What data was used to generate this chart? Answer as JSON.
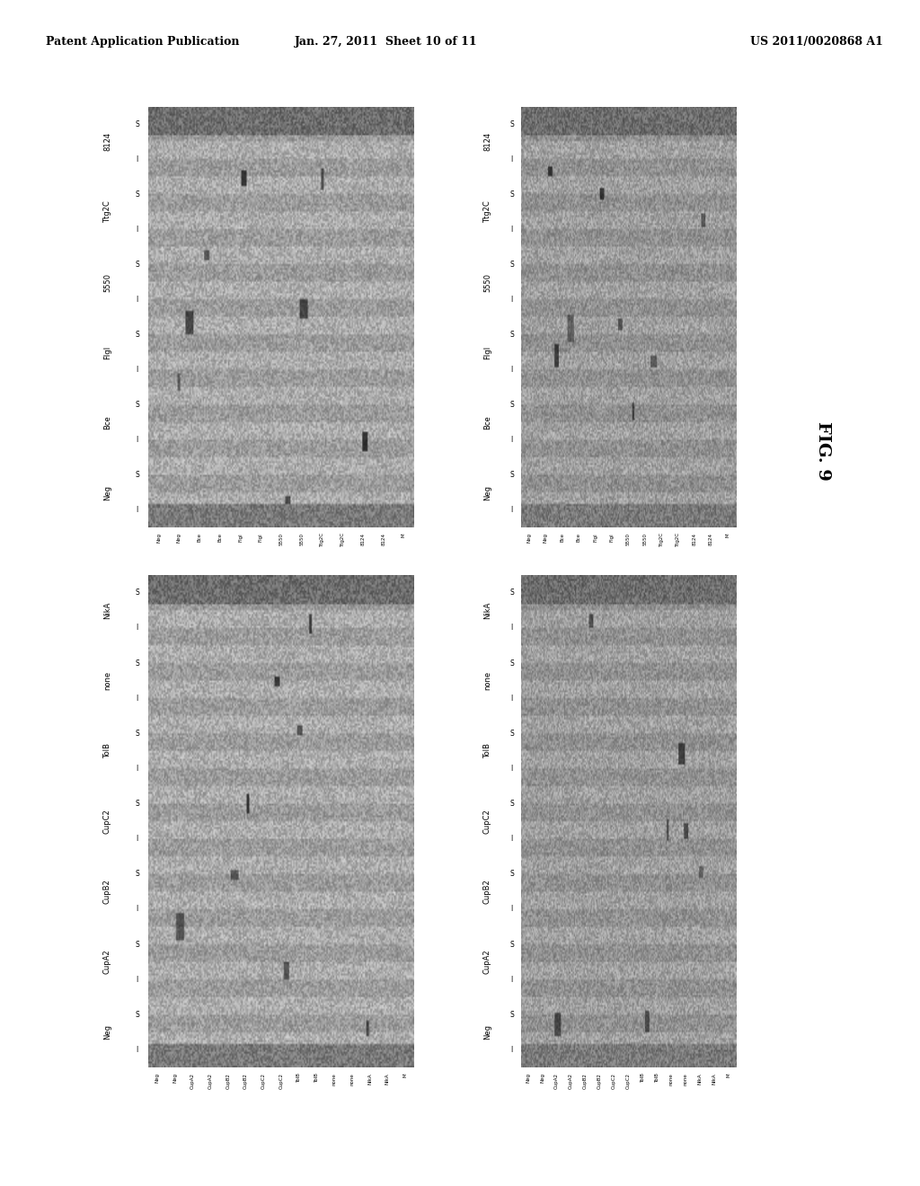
{
  "page_header": {
    "left": "Patent Application Publication",
    "center": "Jan. 27, 2011  Sheet 10 of 11",
    "right": "US 2011/0020868 A1"
  },
  "figure_label": "FIG. 9",
  "top_panels": {
    "groups": [
      "Neg",
      "Bce",
      "FlgI",
      "5550",
      "Ttg2C",
      "8124"
    ],
    "sublabels": [
      "S",
      "I"
    ]
  },
  "bottom_panels": {
    "groups": [
      "Neg",
      "CupA2",
      "CupB2",
      "CupC2",
      "TolB",
      "none",
      "NikA"
    ],
    "sublabels": [
      "S",
      "I"
    ]
  },
  "background_color": "#ffffff",
  "left_panel_bg": "#cccccc",
  "right_panel_bg": "#aaaaaa",
  "panel_border_color": "#333333",
  "header_font_size": 9,
  "label_font_size": 6,
  "sublabel_font_size": 5.5,
  "fig_label_font_size": 14
}
